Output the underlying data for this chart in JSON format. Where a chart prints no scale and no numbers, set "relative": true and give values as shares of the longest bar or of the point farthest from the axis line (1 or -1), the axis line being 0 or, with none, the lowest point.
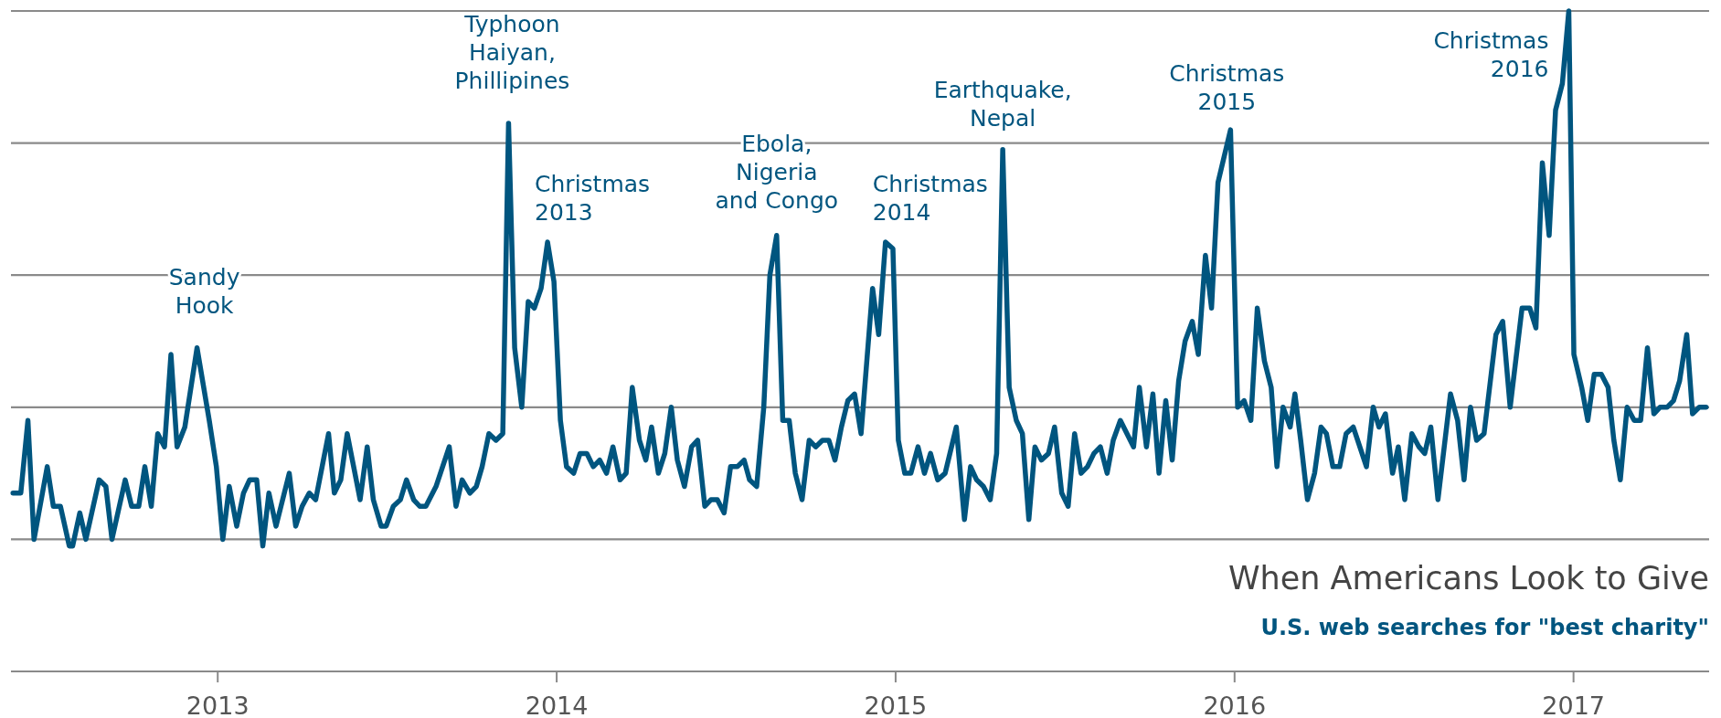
{
  "chart_data": {
    "type": "line",
    "relative": true,
    "grid": "y",
    "title": "When Americans Look to Give",
    "subtitle": "U.S. web searches for \"best charity\"",
    "xlim": [
      2012.39,
      2017.4
    ],
    "xticks": [
      2013,
      2014,
      2015,
      2016,
      2017
    ],
    "x": [
      2012.396,
      2012.419,
      2012.44,
      2012.458,
      2012.497,
      2012.515,
      2012.536,
      2012.562,
      2012.572,
      2012.593,
      2012.611,
      2012.65,
      2012.67,
      2012.688,
      2012.727,
      2012.746,
      2012.767,
      2012.785,
      2012.804,
      2012.823,
      2012.843,
      2012.862,
      2012.88,
      2012.903,
      2012.939,
      2012.975,
      2012.996,
      2013.015,
      2013.034,
      2013.056,
      2013.076,
      2013.094,
      2013.115,
      2013.133,
      2013.151,
      2013.172,
      2013.211,
      2013.23,
      2013.249,
      2013.27,
      2013.289,
      2013.327,
      2013.344,
      2013.363,
      2013.382,
      2013.42,
      2013.441,
      2013.459,
      2013.482,
      2013.497,
      2013.518,
      2013.539,
      2013.557,
      2013.578,
      2013.596,
      2013.614,
      2013.644,
      2013.683,
      2013.703,
      2013.721,
      2013.744,
      2013.763,
      2013.78,
      2013.8,
      2013.821,
      2013.841,
      2013.858,
      2013.876,
      2013.897,
      2013.916,
      2013.934,
      2013.954,
      2013.973,
      2013.992,
      2014.011,
      2014.029,
      2014.05,
      2014.069,
      2014.089,
      2014.108,
      2014.127,
      2014.147,
      2014.166,
      2014.187,
      2014.205,
      2014.223,
      2014.244,
      2014.263,
      2014.28,
      2014.3,
      2014.319,
      2014.338,
      2014.356,
      2014.377,
      2014.398,
      2014.416,
      2014.437,
      2014.455,
      2014.474,
      2014.494,
      2014.513,
      2014.533,
      2014.553,
      2014.569,
      2014.59,
      2014.611,
      2014.629,
      2014.649,
      2014.667,
      2014.686,
      2014.704,
      2014.724,
      2014.745,
      2014.764,
      2014.784,
      2014.803,
      2014.821,
      2014.84,
      2014.859,
      2014.879,
      2014.898,
      2014.932,
      2014.95,
      2014.97,
      2014.992,
      2015.008,
      2015.027,
      2015.045,
      2015.066,
      2015.085,
      2015.103,
      2015.124,
      2015.146,
      2015.179,
      2015.203,
      2015.221,
      2015.239,
      2015.259,
      2015.279,
      2015.298,
      2015.316,
      2015.335,
      2015.356,
      2015.374,
      2015.393,
      2015.411,
      2015.43,
      2015.451,
      2015.469,
      2015.49,
      2015.509,
      2015.528,
      2015.547,
      2015.566,
      2015.585,
      2015.604,
      2015.624,
      2015.642,
      2015.663,
      2015.702,
      2015.719,
      2015.74,
      2015.759,
      2015.777,
      2015.797,
      2015.816,
      2015.835,
      2015.854,
      2015.875,
      2015.893,
      2015.914,
      2015.932,
      2015.951,
      2015.988,
      2016.009,
      2016.028,
      2016.048,
      2016.067,
      2016.088,
      2016.108,
      2016.125,
      2016.143,
      2016.164,
      2016.178,
      2016.195,
      2016.215,
      2016.236,
      2016.255,
      2016.271,
      2016.29,
      2016.31,
      2016.329,
      2016.35,
      2016.389,
      2016.409,
      2016.426,
      2016.445,
      2016.466,
      2016.483,
      2016.502,
      2016.523,
      2016.544,
      2016.561,
      2016.579,
      2016.6,
      2016.637,
      2016.658,
      2016.677,
      2016.696,
      2016.714,
      2016.736,
      2016.771,
      2016.791,
      2016.813,
      2016.848,
      2016.871,
      2016.889,
      2016.908,
      2016.928,
      2016.947,
      2016.967,
      2016.986,
      2017.001,
      2017.024,
      2017.042,
      2017.061,
      2017.082,
      2017.102,
      2017.119,
      2017.138,
      2017.158,
      2017.179,
      2017.198,
      2017.218,
      2017.237,
      2017.255,
      2017.276,
      2017.295,
      2017.313,
      2017.334,
      2017.351,
      2017.371,
      2017.391
    ],
    "series": [
      {
        "color": "#00557f",
        "values": [
          0.27,
          0.27,
          0.38,
          0.2,
          0.31,
          0.25,
          0.25,
          0.19,
          0.19,
          0.24,
          0.2,
          0.29,
          0.28,
          0.2,
          0.29,
          0.25,
          0.25,
          0.31,
          0.25,
          0.36,
          0.34,
          0.48,
          0.34,
          0.37,
          0.49,
          0.38,
          0.31,
          0.2,
          0.28,
          0.22,
          0.27,
          0.29,
          0.29,
          0.19,
          0.27,
          0.22,
          0.3,
          0.22,
          0.25,
          0.27,
          0.26,
          0.36,
          0.27,
          0.29,
          0.36,
          0.26,
          0.34,
          0.26,
          0.22,
          0.22,
          0.25,
          0.26,
          0.29,
          0.26,
          0.25,
          0.25,
          0.28,
          0.34,
          0.25,
          0.29,
          0.27,
          0.28,
          0.31,
          0.36,
          0.35,
          0.36,
          0.83,
          0.49,
          0.4,
          0.56,
          0.55,
          0.58,
          0.65,
          0.59,
          0.38,
          0.31,
          0.3,
          0.33,
          0.33,
          0.31,
          0.32,
          0.3,
          0.34,
          0.29,
          0.3,
          0.43,
          0.35,
          0.32,
          0.37,
          0.3,
          0.33,
          0.4,
          0.32,
          0.28,
          0.34,
          0.35,
          0.25,
          0.26,
          0.26,
          0.24,
          0.31,
          0.31,
          0.32,
          0.29,
          0.28,
          0.4,
          0.6,
          0.66,
          0.38,
          0.38,
          0.3,
          0.26,
          0.35,
          0.34,
          0.35,
          0.35,
          0.32,
          0.37,
          0.41,
          0.42,
          0.36,
          0.58,
          0.51,
          0.65,
          0.64,
          0.35,
          0.3,
          0.3,
          0.34,
          0.3,
          0.33,
          0.29,
          0.3,
          0.37,
          0.23,
          0.31,
          0.29,
          0.28,
          0.26,
          0.33,
          0.79,
          0.43,
          0.38,
          0.36,
          0.23,
          0.34,
          0.32,
          0.33,
          0.37,
          0.27,
          0.25,
          0.36,
          0.3,
          0.31,
          0.33,
          0.34,
          0.3,
          0.35,
          0.38,
          0.34,
          0.43,
          0.34,
          0.42,
          0.3,
          0.41,
          0.32,
          0.44,
          0.5,
          0.53,
          0.48,
          0.63,
          0.55,
          0.74,
          0.82,
          0.4,
          0.41,
          0.38,
          0.55,
          0.47,
          0.43,
          0.31,
          0.4,
          0.37,
          0.42,
          0.35,
          0.26,
          0.3,
          0.37,
          0.36,
          0.31,
          0.31,
          0.36,
          0.37,
          0.31,
          0.4,
          0.37,
          0.39,
          0.3,
          0.34,
          0.26,
          0.36,
          0.34,
          0.33,
          0.37,
          0.26,
          0.42,
          0.38,
          0.29,
          0.4,
          0.35,
          0.36,
          0.51,
          0.53,
          0.4,
          0.55,
          0.55,
          0.52,
          0.77,
          0.66,
          0.85,
          0.89,
          1.0,
          0.48,
          0.43,
          0.38,
          0.45,
          0.45,
          0.43,
          0.35,
          0.29,
          0.4,
          0.38,
          0.38,
          0.49,
          0.39,
          0.4,
          0.4,
          0.41,
          0.44,
          0.51,
          0.39,
          0.4,
          0.4
        ]
      }
    ],
    "annotations": [
      {
        "text": "Sandy\nHook",
        "x": 2012.939,
        "y": 0.49
      },
      {
        "text": "Typhoon\nHaiyan,\nPhillipines",
        "x": 2013.858,
        "y": 0.83
      },
      {
        "text": "Christmas\n2013",
        "x": 2013.973,
        "y": 0.65
      },
      {
        "text": "Ebola,\nNigeria\nand Congo",
        "x": 2014.649,
        "y": 0.66
      },
      {
        "text": "Christmas\n2014",
        "x": 2014.97,
        "y": 0.65
      },
      {
        "text": "Earthquake,\nNepal",
        "x": 2015.316,
        "y": 0.79
      },
      {
        "text": "Christmas\n2015",
        "x": 2015.988,
        "y": 0.82
      },
      {
        "text": "Christmas\n2016",
        "x": 2016.986,
        "y": 1.0
      }
    ]
  }
}
